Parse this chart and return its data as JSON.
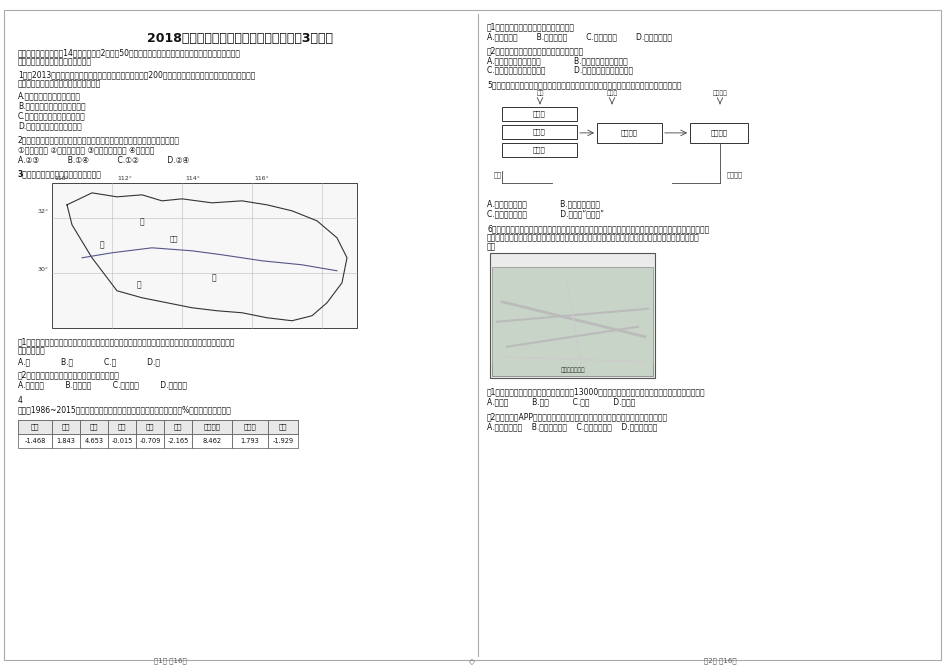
{
  "bg_color": "#ffffff",
  "title": "2018年浙江省绍兴市高考地理模拟试卷（3月份）",
  "table_headers": [
    "河流",
    "林地",
    "坑塘",
    "水库",
    "水渠",
    "草地",
    "建设用地",
    "椿荒地",
    "裸地"
  ],
  "table_values": [
    "-1.468",
    "1.843",
    "4.653",
    "-0.015",
    "-0.709",
    "-2.165",
    "8.462",
    "1.793",
    "-1.929"
  ]
}
